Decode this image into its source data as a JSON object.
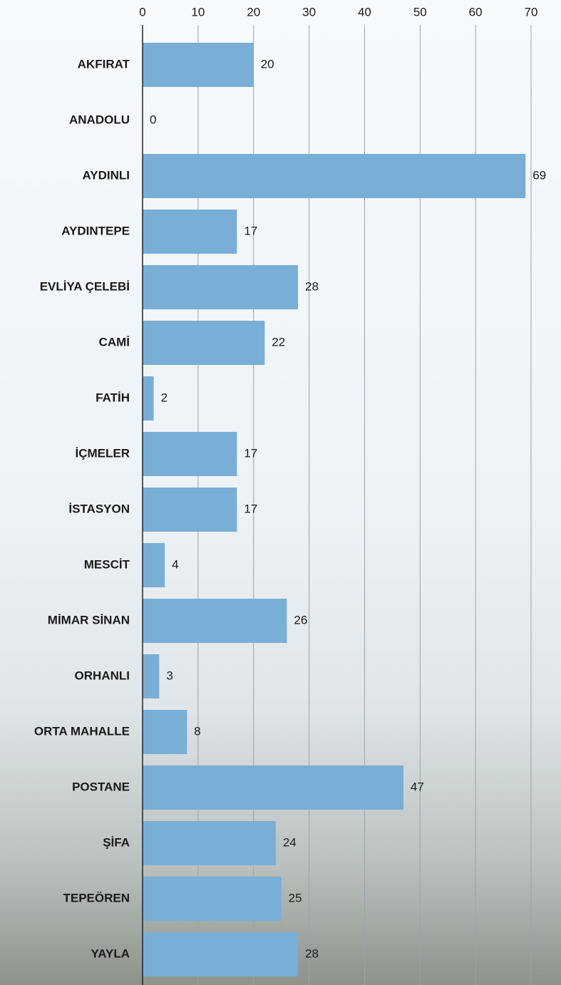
{
  "chart_data": {
    "type": "bar",
    "orientation": "horizontal",
    "categories": [
      "AKFIRAT",
      "ANADOLU",
      "AYDINLI",
      "AYDINTEPE",
      "EVLİYA ÇELEBİ",
      "CAMİ",
      "FATİH",
      "İÇMELER",
      "İSTASYON",
      "MESCİT",
      "MİMAR SİNAN",
      "ORHANLI",
      "ORTA MAHALLE",
      "POSTANE",
      "ŞİFA",
      "TEPEÖREN",
      "YAYLA"
    ],
    "values": [
      20,
      0,
      69,
      17,
      28,
      22,
      2,
      17,
      17,
      4,
      26,
      3,
      8,
      47,
      24,
      25,
      28
    ],
    "color": "#79aed6",
    "xlim": [
      0,
      70
    ],
    "xticks": [
      0,
      10,
      20,
      30,
      40,
      50,
      60,
      70
    ],
    "grid": true
  }
}
